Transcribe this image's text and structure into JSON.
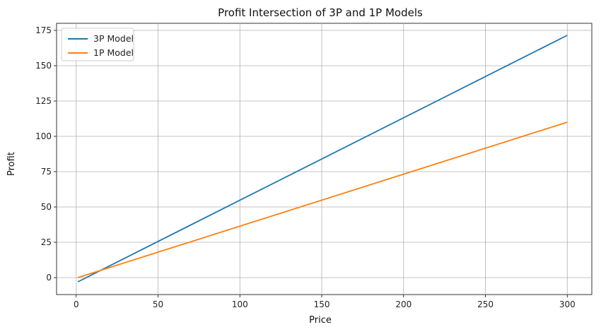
{
  "chart_data": {
    "type": "line",
    "title": "Profit Intersection of 3P and 1P Models",
    "xlabel": "Price",
    "ylabel": "Profit",
    "xlim": [
      -12,
      315
    ],
    "ylim": [
      -12,
      180
    ],
    "xticks": [
      0,
      50,
      100,
      150,
      200,
      250,
      300
    ],
    "yticks": [
      0,
      25,
      50,
      75,
      100,
      125,
      150,
      175
    ],
    "grid": true,
    "legend_position": "top-left",
    "series": [
      {
        "name": "3P Model",
        "color": "#1f77b4",
        "x": [
          1,
          300
        ],
        "y": [
          -3,
          171.5
        ]
      },
      {
        "name": "1P Model",
        "color": "#ff7f0e",
        "x": [
          1,
          300
        ],
        "y": [
          0,
          110
        ]
      }
    ]
  }
}
